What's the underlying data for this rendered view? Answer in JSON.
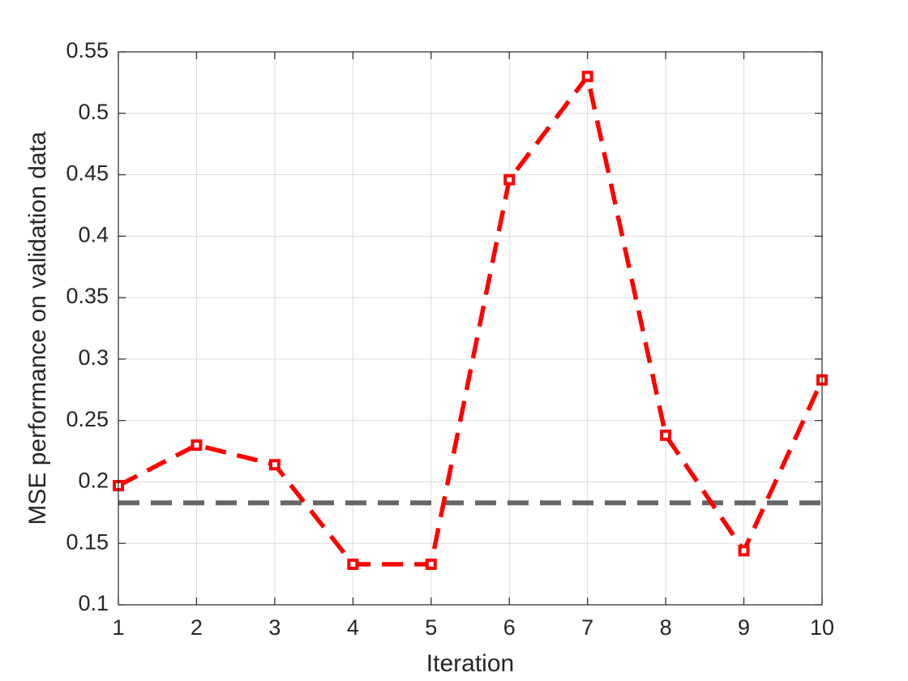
{
  "chart_data": {
    "type": "line",
    "x": [
      1,
      2,
      3,
      4,
      5,
      6,
      7,
      8,
      9,
      10
    ],
    "series": [
      {
        "color": "#ff0000",
        "values": [
          0.197,
          0.23,
          0.214,
          0.133,
          0.133,
          0.446,
          0.53,
          0.238,
          0.144,
          0.283
        ]
      }
    ],
    "hlines": [
      {
        "value": 0.183,
        "color": "#666666"
      }
    ],
    "xlim": [
      1,
      10
    ],
    "xticks": [
      1,
      2,
      3,
      4,
      5,
      6,
      7,
      8,
      9,
      10
    ],
    "ylim": [
      0.1,
      0.55
    ],
    "yticks": [
      0.1,
      0.15,
      0.2,
      0.25,
      0.3,
      0.35,
      0.4,
      0.45,
      0.5,
      0.55
    ],
    "xlabel": "Iteration",
    "ylabel": "MSE performance on validation data",
    "grid": true
  }
}
